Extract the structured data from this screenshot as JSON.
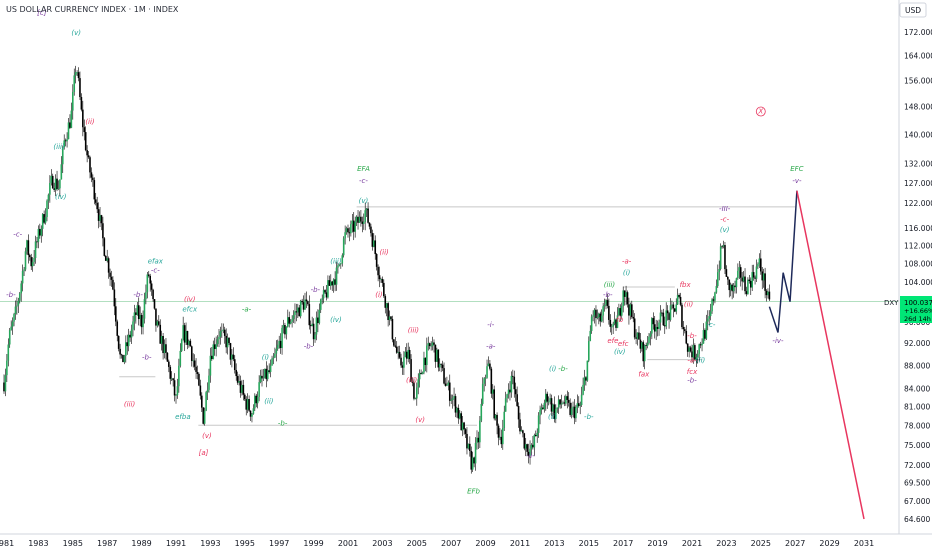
{
  "header": {
    "title": "US DOLLAR CURRENCY INDEX · 1M · INDEX",
    "currency_button": "USD"
  },
  "price_tag": {
    "symbol": "DXY",
    "price": "100.037",
    "change": "+16.66%",
    "countdown": "26d 14h"
  },
  "colors": {
    "candle_up": "#26a65b",
    "candle_down": "#000000",
    "projection_black": "#1e2a5a",
    "projection_red": "#e8365f",
    "wave_green": "#2aa84a",
    "wave_red": "#e8365f",
    "wave_teal": "#26a69a",
    "wave_purple": "#7b3fa0",
    "grid_line": "#b2dfc0"
  },
  "chart_data": {
    "type": "candlestick",
    "title": "US DOLLAR CURRENCY INDEX · 1M · INDEX",
    "x_ticks": [
      "1981",
      "1983",
      "1985",
      "1987",
      "1989",
      "1991",
      "1993",
      "1995",
      "1997",
      "1999",
      "2001",
      "2003",
      "2005",
      "2007",
      "2009",
      "2011",
      "2013",
      "2015",
      "2017",
      "2019",
      "2021",
      "2023",
      "2025",
      "2027",
      "2029",
      "2031"
    ],
    "y_ticks": [
      64.6,
      67.0,
      69.5,
      72.0,
      75.0,
      78.0,
      81.0,
      84.0,
      88.0,
      92.0,
      96.0,
      100.0,
      104.0,
      108.0,
      112.0,
      116.0,
      122.0,
      127.0,
      132.0,
      140.0,
      148.0,
      156.0,
      164.0,
      172.0
    ],
    "y_axis": "log",
    "current_price": 100.037,
    "path_points": [
      [
        1981.0,
        85
      ],
      [
        1981.3,
        93
      ],
      [
        1981.7,
        98
      ],
      [
        1982.0,
        104
      ],
      [
        1982.3,
        112
      ],
      [
        1982.6,
        108
      ],
      [
        1983.0,
        114
      ],
      [
        1983.4,
        120
      ],
      [
        1983.8,
        128
      ],
      [
        1984.2,
        126
      ],
      [
        1984.5,
        138
      ],
      [
        1984.9,
        145
      ],
      [
        1985.2,
        162
      ],
      [
        1985.5,
        146
      ],
      [
        1985.9,
        132
      ],
      [
        1986.4,
        122
      ],
      [
        1986.8,
        112
      ],
      [
        1987.3,
        104
      ],
      [
        1987.8,
        88
      ],
      [
        1988.2,
        92
      ],
      [
        1988.7,
        98
      ],
      [
        1989.0,
        96
      ],
      [
        1989.4,
        106
      ],
      [
        1989.8,
        96
      ],
      [
        1990.2,
        92
      ],
      [
        1990.7,
        86
      ],
      [
        1991.0,
        82
      ],
      [
        1991.4,
        94
      ],
      [
        1991.8,
        92
      ],
      [
        1992.2,
        86
      ],
      [
        1992.6,
        79
      ],
      [
        1993.0,
        90
      ],
      [
        1993.5,
        94
      ],
      [
        1994.0,
        92
      ],
      [
        1994.5,
        86
      ],
      [
        1995.0,
        82
      ],
      [
        1995.4,
        80
      ],
      [
        1995.9,
        85
      ],
      [
        1996.5,
        87
      ],
      [
        1997.0,
        92
      ],
      [
        1997.5,
        96
      ],
      [
        1998.0,
        98
      ],
      [
        1998.5,
        100
      ],
      [
        1999.0,
        94
      ],
      [
        1999.5,
        100
      ],
      [
        2000.0,
        104
      ],
      [
        2000.4,
        106
      ],
      [
        2000.8,
        114
      ],
      [
        2001.3,
        116
      ],
      [
        2001.7,
        118
      ],
      [
        2002.0,
        120
      ],
      [
        2002.3,
        116
      ],
      [
        2002.7,
        108
      ],
      [
        2003.2,
        100
      ],
      [
        2003.7,
        92
      ],
      [
        2004.0,
        88
      ],
      [
        2004.5,
        90
      ],
      [
        2004.9,
        82
      ],
      [
        2005.4,
        89
      ],
      [
        2005.9,
        92
      ],
      [
        2006.3,
        88
      ],
      [
        2006.8,
        84
      ],
      [
        2007.3,
        81
      ],
      [
        2007.8,
        76
      ],
      [
        2008.2,
        72
      ],
      [
        2008.6,
        76
      ],
      [
        2008.9,
        86
      ],
      [
        2009.2,
        88
      ],
      [
        2009.6,
        78
      ],
      [
        2009.9,
        76
      ],
      [
        2010.3,
        84
      ],
      [
        2010.6,
        86
      ],
      [
        2010.9,
        79
      ],
      [
        2011.3,
        75
      ],
      [
        2011.7,
        74
      ],
      [
        2012.2,
        80
      ],
      [
        2012.6,
        83
      ],
      [
        2013.0,
        80
      ],
      [
        2013.5,
        82
      ],
      [
        2014.0,
        80
      ],
      [
        2014.5,
        81
      ],
      [
        2014.9,
        88
      ],
      [
        2015.2,
        98
      ],
      [
        2015.6,
        96
      ],
      [
        2016.0,
        99
      ],
      [
        2016.4,
        94
      ],
      [
        2016.8,
        98
      ],
      [
        2017.0,
        103
      ],
      [
        2017.4,
        98
      ],
      [
        2017.8,
        93
      ],
      [
        2018.2,
        90
      ],
      [
        2018.6,
        95
      ],
      [
        2019.0,
        96
      ],
      [
        2019.5,
        97
      ],
      [
        2019.9,
        98
      ],
      [
        2020.2,
        101
      ],
      [
        2020.5,
        95
      ],
      [
        2020.8,
        91
      ],
      [
        2021.2,
        90
      ],
      [
        2021.6,
        93
      ],
      [
        2022.0,
        96
      ],
      [
        2022.4,
        104
      ],
      [
        2022.8,
        113
      ],
      [
        2023.0,
        104
      ],
      [
        2023.4,
        102
      ],
      [
        2023.8,
        106
      ],
      [
        2024.1,
        103
      ],
      [
        2024.5,
        105
      ],
      [
        2024.9,
        108
      ],
      [
        2025.2,
        104
      ],
      [
        2025.5,
        99
      ]
    ],
    "projection_black": [
      [
        2025.5,
        99
      ],
      [
        2026.0,
        94
      ],
      [
        2026.3,
        106
      ],
      [
        2026.7,
        100
      ],
      [
        2027.1,
        125
      ]
    ],
    "projection_red": [
      [
        2027.1,
        125
      ],
      [
        2031.0,
        64.6
      ]
    ],
    "horizontal_lines": [
      {
        "from": 2001.5,
        "to": 2027.0,
        "price": 121
      },
      {
        "from": 1992.3,
        "to": 2008.5,
        "price": 78
      },
      {
        "from": 1987.7,
        "to": 1989.8,
        "price": 86
      },
      {
        "from": 2017.0,
        "to": 2020.0,
        "price": 103
      },
      {
        "from": 2018.4,
        "to": 2021.6,
        "price": 89
      }
    ],
    "price_line": 100.037
  },
  "wave_labels": [
    {
      "t": "[c]",
      "x": 1983.2,
      "p": 178,
      "c": "wave_purple",
      "s": 12
    },
    {
      "t": "(v)",
      "x": 1985.2,
      "p": 171,
      "c": "wave_teal",
      "s": 7
    },
    {
      "t": "(ii)",
      "x": 1986.0,
      "p": 143,
      "c": "wave_red",
      "s": 7
    },
    {
      "t": "(iii)",
      "x": 1984.2,
      "p": 136,
      "c": "wave_teal",
      "s": 7
    },
    {
      "t": "(iv)",
      "x": 1984.3,
      "p": 123,
      "c": "wave_teal",
      "s": 7
    },
    {
      "t": "-c-",
      "x": 1981.8,
      "p": 114,
      "c": "wave_purple",
      "s": 6
    },
    {
      "t": "-b-",
      "x": 1981.4,
      "p": 101,
      "c": "wave_purple",
      "s": 6
    },
    {
      "t": "efax",
      "x": 1989.8,
      "p": 108,
      "c": "wave_teal",
      "s": 6
    },
    {
      "t": "-c-",
      "x": 1989.8,
      "p": 106,
      "c": "wave_purple",
      "s": 6
    },
    {
      "t": "-b-",
      "x": 1988.8,
      "p": 101,
      "c": "wave_purple",
      "s": 6
    },
    {
      "t": "(iv)",
      "x": 1991.8,
      "p": 100,
      "c": "wave_red",
      "s": 7
    },
    {
      "t": "efcx",
      "x": 1991.8,
      "p": 98,
      "c": "wave_teal",
      "s": 6
    },
    {
      "t": "-a-",
      "x": 1995.1,
      "p": 98,
      "c": "wave_green",
      "s": 6
    },
    {
      "t": "-b-",
      "x": 1989.3,
      "p": 89,
      "c": "wave_purple",
      "s": 6
    },
    {
      "t": "(iii)",
      "x": 1988.3,
      "p": 81,
      "c": "wave_red",
      "s": 7
    },
    {
      "t": "efba",
      "x": 1991.4,
      "p": 79,
      "c": "wave_teal",
      "s": 6
    },
    {
      "t": "(v)",
      "x": 1992.8,
      "p": 76,
      "c": "wave_red",
      "s": 7
    },
    {
      "t": "[a]",
      "x": 1992.6,
      "p": 73.5,
      "c": "wave_red",
      "s": 11
    },
    {
      "t": "(i)",
      "x": 1996.2,
      "p": 89,
      "c": "wave_teal",
      "s": 7
    },
    {
      "t": "(ii)",
      "x": 1996.4,
      "p": 81.5,
      "c": "wave_teal",
      "s": 7
    },
    {
      "t": "-b-",
      "x": 1997.2,
      "p": 78,
      "c": "wave_green",
      "s": 6
    },
    {
      "t": "-b-",
      "x": 1999.1,
      "p": 102,
      "c": "wave_purple",
      "s": 6
    },
    {
      "t": "(iii)",
      "x": 2000.3,
      "p": 108,
      "c": "wave_teal",
      "s": 7
    },
    {
      "t": "(iv)",
      "x": 2000.3,
      "p": 96,
      "c": "wave_teal",
      "s": 7
    },
    {
      "t": "-b-",
      "x": 1998.7,
      "p": 91,
      "c": "wave_purple",
      "s": 6
    },
    {
      "t": "EFA",
      "x": 2001.9,
      "p": 130,
      "c": "wave_green",
      "s": 7
    },
    {
      "t": "-c-",
      "x": 2001.9,
      "p": 127,
      "c": "wave_purple",
      "s": 6
    },
    {
      "t": "(v)",
      "x": 2001.9,
      "p": 122,
      "c": "wave_teal",
      "s": 7
    },
    {
      "t": "(ii)",
      "x": 2003.1,
      "p": 110,
      "c": "wave_red",
      "s": 7
    },
    {
      "t": "(i)",
      "x": 2002.8,
      "p": 101,
      "c": "wave_red",
      "s": 7
    },
    {
      "t": "(iii)",
      "x": 2004.8,
      "p": 94,
      "c": "wave_red",
      "s": 7
    },
    {
      "t": "(iii)",
      "x": 2004.7,
      "p": 85,
      "c": "wave_red",
      "s": 7
    },
    {
      "t": "(v)",
      "x": 2005.2,
      "p": 78.5,
      "c": "wave_red",
      "s": 7
    },
    {
      "t": "EFb",
      "x": 2008.3,
      "p": 68,
      "c": "wave_green",
      "s": 7
    },
    {
      "t": "-i-",
      "x": 2009.3,
      "p": 95,
      "c": "wave_purple",
      "s": 6
    },
    {
      "t": "-a-",
      "x": 2009.3,
      "p": 91,
      "c": "wave_purple",
      "s": 6
    },
    {
      "t": "(i)",
      "x": 2012.9,
      "p": 87,
      "c": "wave_teal",
      "s": 7
    },
    {
      "t": "-b-",
      "x": 2013.5,
      "p": 87,
      "c": "wave_green",
      "s": 6
    },
    {
      "t": "(ii)",
      "x": 2012.9,
      "p": 79,
      "c": "wave_teal",
      "s": 7
    },
    {
      "t": "-ii-",
      "x": 2011.6,
      "p": 73,
      "c": "wave_purple",
      "s": 6
    },
    {
      "t": "-b-",
      "x": 2015.0,
      "p": 79,
      "c": "wave_teal",
      "s": 6
    },
    {
      "t": "(iii)",
      "x": 2016.2,
      "p": 103,
      "c": "wave_green",
      "s": 7
    },
    {
      "t": "-b-",
      "x": 2016.1,
      "p": 101,
      "c": "wave_purple",
      "s": 6
    },
    {
      "t": "-a-",
      "x": 2017.2,
      "p": 108,
      "c": "wave_red",
      "s": 6
    },
    {
      "t": "(i)",
      "x": 2017.2,
      "p": 105.5,
      "c": "wave_teal",
      "s": 7
    },
    {
      "t": "fb",
      "x": 2016.8,
      "p": 96,
      "c": "wave_red",
      "s": 6
    },
    {
      "t": "efe",
      "x": 2016.4,
      "p": 92,
      "c": "wave_red",
      "s": 6
    },
    {
      "t": "efc",
      "x": 2017.0,
      "p": 91.5,
      "c": "wave_red",
      "s": 6
    },
    {
      "t": "(iv)",
      "x": 2016.8,
      "p": 90,
      "c": "wave_teal",
      "s": 6
    },
    {
      "t": "fax",
      "x": 2018.2,
      "p": 86,
      "c": "wave_red",
      "s": 6
    },
    {
      "t": "fbx",
      "x": 2020.6,
      "p": 103,
      "c": "wave_red",
      "s": 6
    },
    {
      "t": "(ii)",
      "x": 2020.8,
      "p": 99,
      "c": "wave_red",
      "s": 6
    },
    {
      "t": "-b-",
      "x": 2021.0,
      "p": 93,
      "c": "wave_red",
      "s": 6
    },
    {
      "t": "-a-",
      "x": 2021.0,
      "p": 88.5,
      "c": "wave_red",
      "s": 6
    },
    {
      "t": "(ii)",
      "x": 2021.5,
      "p": 88.5,
      "c": "wave_teal",
      "s": 6
    },
    {
      "t": "fcx",
      "x": 2021.0,
      "p": 86.5,
      "c": "wave_red",
      "s": 6
    },
    {
      "t": "-b-",
      "x": 2021.0,
      "p": 85,
      "c": "wave_purple",
      "s": 6
    },
    {
      "t": "-c-",
      "x": 2022.1,
      "p": 95,
      "c": "wave_teal",
      "s": 6
    },
    {
      "t": "-III-",
      "x": 2022.9,
      "p": 120,
      "c": "wave_purple",
      "s": 6
    },
    {
      "t": "-c-",
      "x": 2022.9,
      "p": 117.5,
      "c": "wave_red",
      "s": 6
    },
    {
      "t": "(v)",
      "x": 2022.9,
      "p": 115,
      "c": "wave_teal",
      "s": 6
    },
    {
      "t": "-iv-",
      "x": 2026.0,
      "p": 92,
      "c": "wave_purple",
      "s": 6
    },
    {
      "t": "EFC",
      "x": 2027.1,
      "p": 130,
      "c": "wave_green",
      "s": 7
    },
    {
      "t": "-v-",
      "x": 2027.1,
      "p": 127,
      "c": "wave_purple",
      "s": 6
    },
    {
      "t": "X",
      "x": 2025.0,
      "p": 146,
      "c": "wave_red",
      "s": 7
    }
  ]
}
